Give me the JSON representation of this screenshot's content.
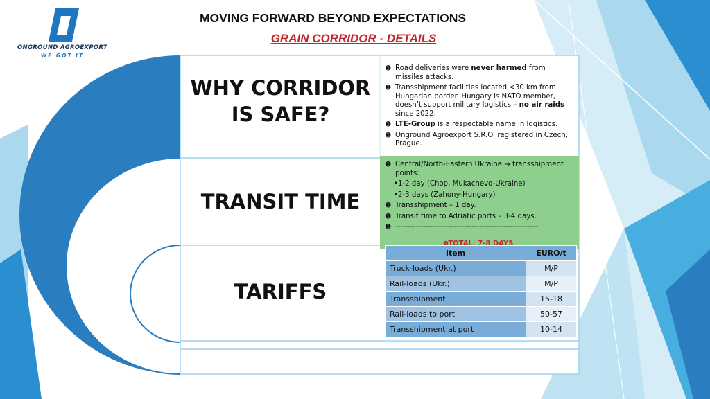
{
  "brand": {
    "name": "ONGROUND AGROEXPORT",
    "tagline": "WE GOT IT"
  },
  "header": {
    "title": "MOVING FORWARD BEYOND EXPECTATIONS",
    "subtitle": "GRAIN CORRIDOR - DETAILS"
  },
  "sections": {
    "why": {
      "label": "WHY CORRIDOR IS SAFE?",
      "points": [
        {
          "before": "Road deliveries were ",
          "strong": "never harmed",
          "after": " from missiles attacks."
        },
        {
          "before": "Transshipment facilities located <30 km from Hungarian border. Hungary is NATO member, doesn’t support military logistics – ",
          "strong": "no air raids",
          "after": " since 2022."
        },
        {
          "before": "",
          "strong": "LTE-Group",
          "after": " is a respectable name in logistics."
        },
        {
          "before": "Onground Agroexport S.R.O. registered in Czech, Prague.",
          "strong": "",
          "after": ""
        }
      ]
    },
    "transit": {
      "label": "TRANSIT TIME",
      "intro": "Central/North-Eastern Ukraine → transshipment points:",
      "subpoints": [
        "1-2 day (Chop, Mukachevo-Ukraine)",
        "2-3 days (Zahony-Hungary)"
      ],
      "points": [
        "Transshipment – 1 day.",
        "Transit time to Adriatic ports – 3-4 days.",
        "--------------------------------------------------------"
      ],
      "total": "TOTAL: 7-8 DAYS"
    },
    "tariffs": {
      "label": "TARIFFS",
      "columns": [
        "Item",
        "EURO/t"
      ],
      "rows": [
        [
          "Truck-loads (Ukr.)",
          "M/P"
        ],
        [
          "Rail-loads (Ukr.)",
          "M/P"
        ],
        [
          "Transshipment",
          "15-18"
        ],
        [
          "Rail-loads to port",
          "50-57"
        ],
        [
          "Transshipment at port",
          "10-14"
        ]
      ]
    }
  },
  "colors": {
    "arc_blue": "#2a7dbe",
    "accent_red": "#c0282b",
    "panel_green": "#8ecf8e",
    "table_header": "#7aacd8",
    "table_cell": "#d3e3f2",
    "brand_blue": "#1f77c4"
  },
  "icons": {
    "logo": "stylized-letter-o-logo",
    "bullet": "circled-number-bullet"
  }
}
